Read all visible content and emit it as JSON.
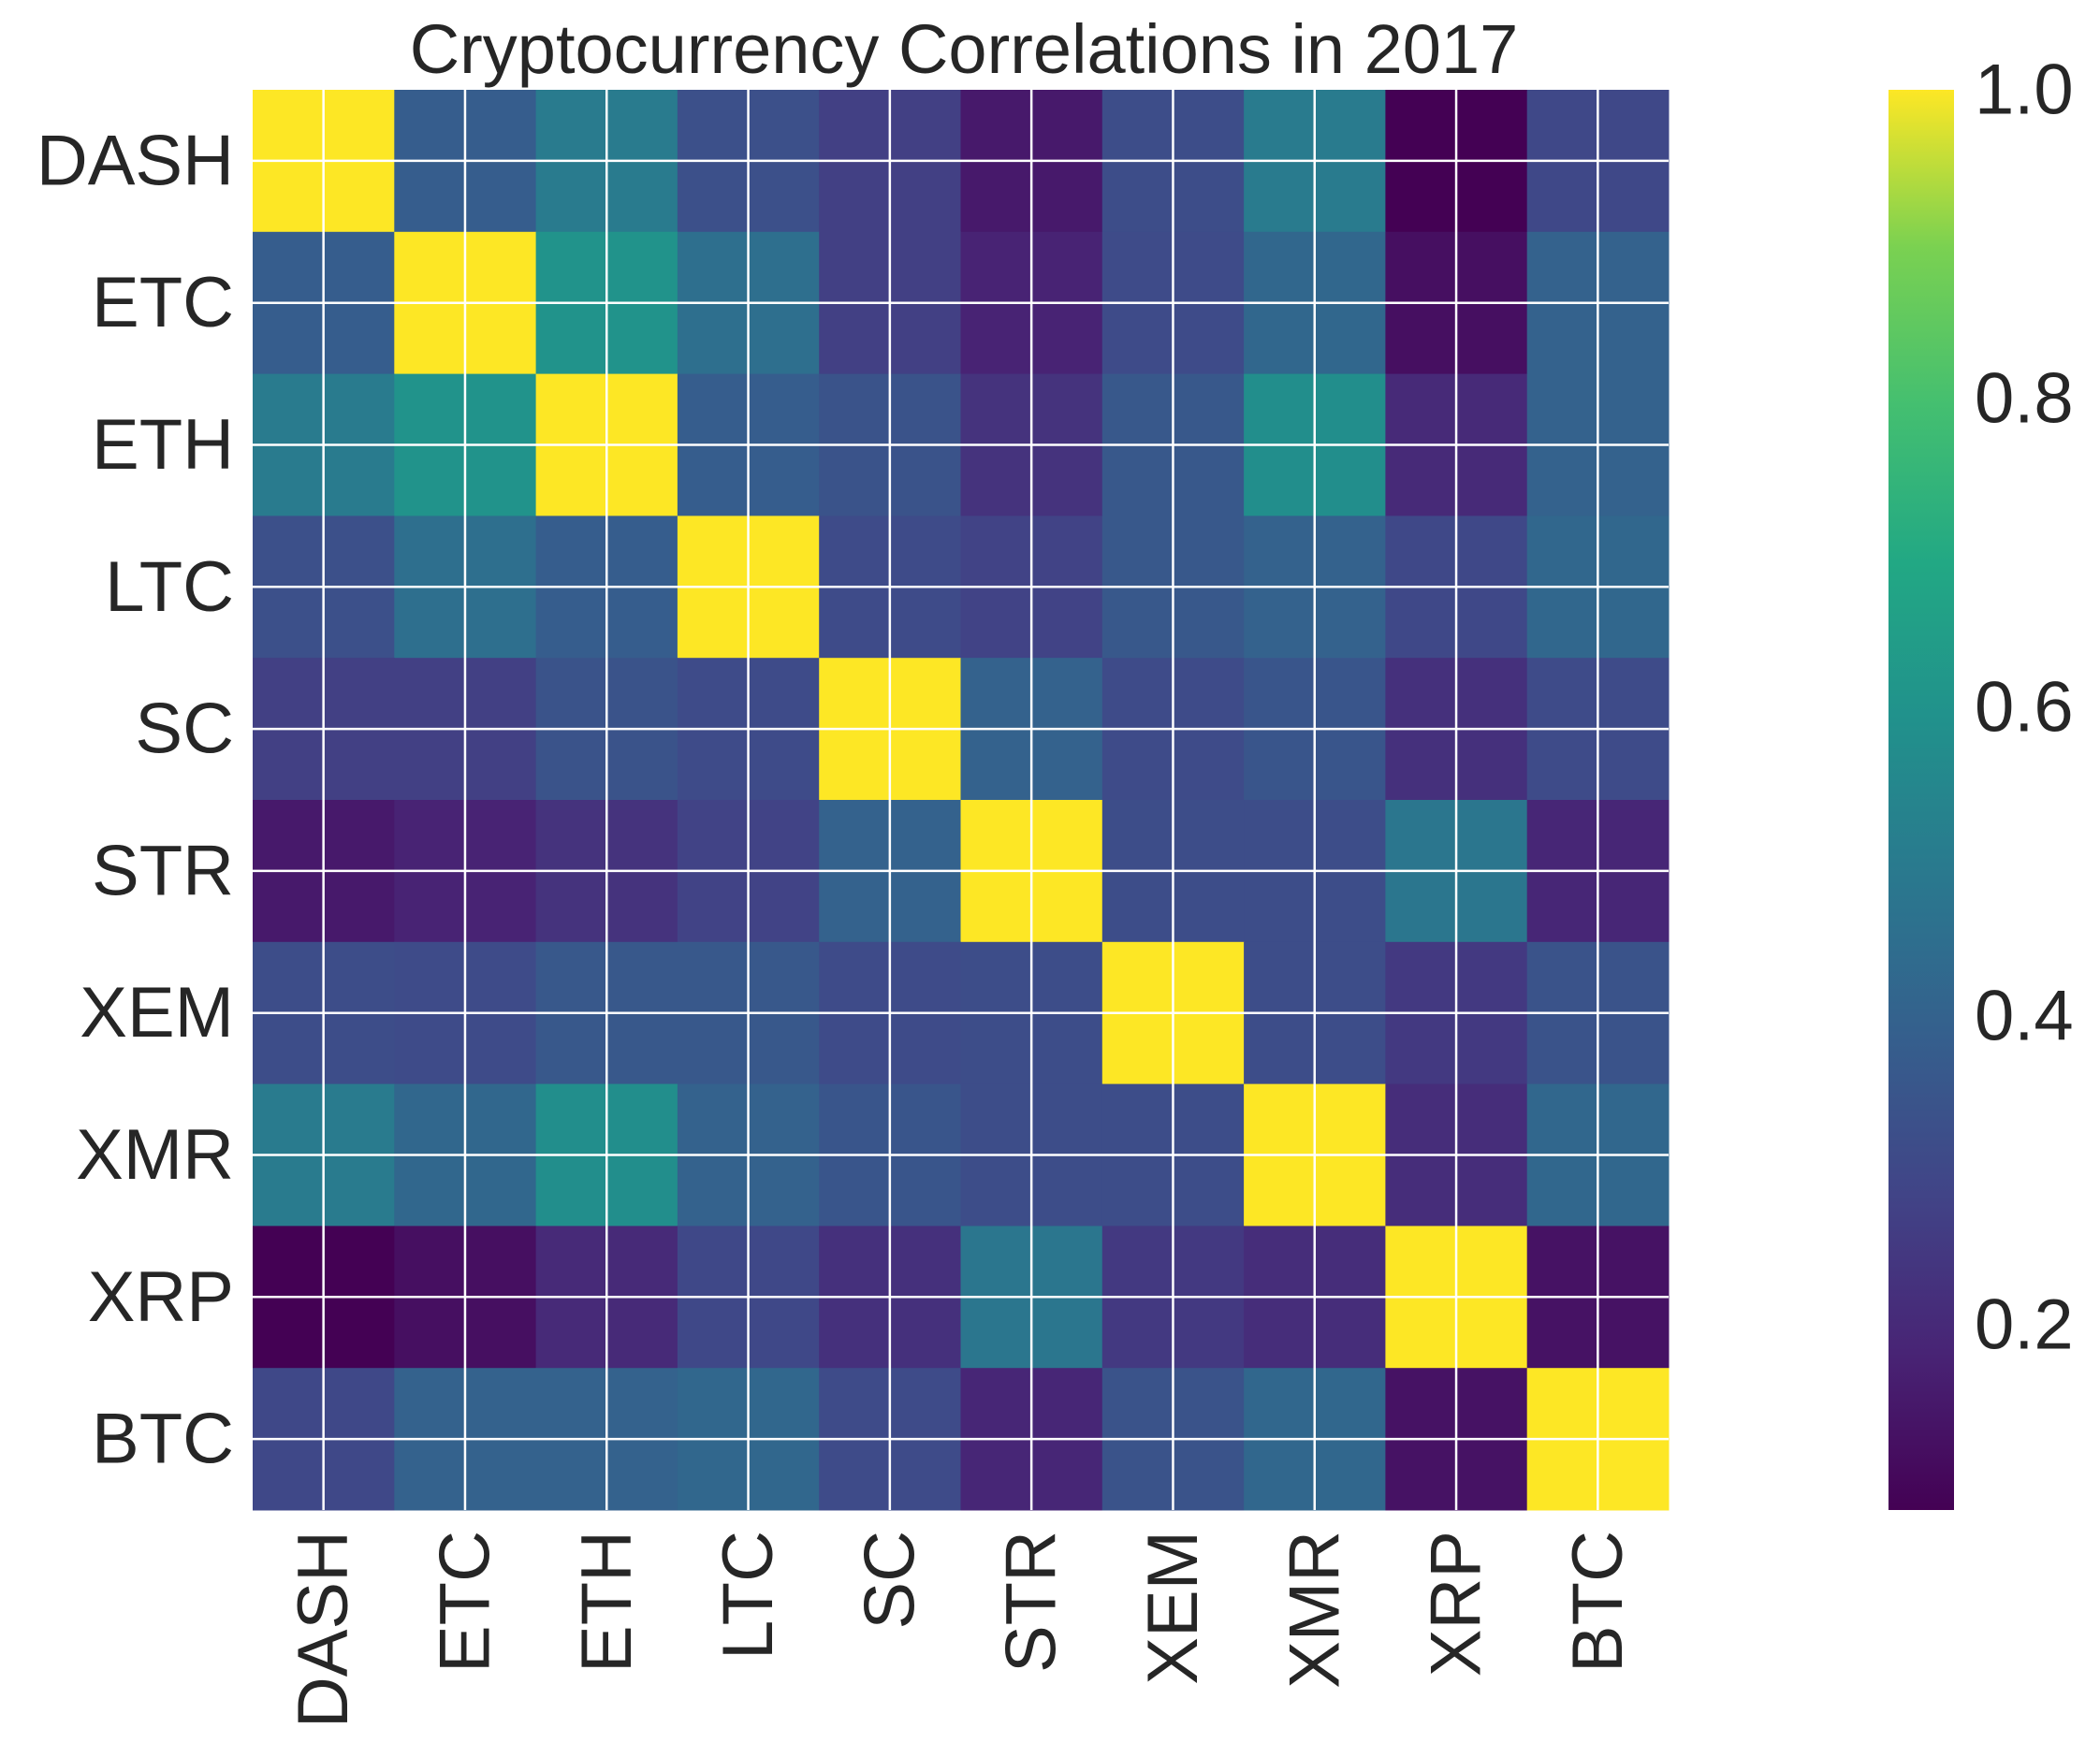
{
  "chart_data": {
    "type": "heatmap",
    "title": "Cryptocurrency Correlations in 2017",
    "xlabel": "",
    "ylabel": "",
    "rows": [
      "DASH",
      "ETC",
      "ETH",
      "LTC",
      "SC",
      "STR",
      "XEM",
      "XMR",
      "XRP",
      "BTC"
    ],
    "columns": [
      "DASH",
      "ETC",
      "ETH",
      "LTC",
      "SC",
      "STR",
      "XEM",
      "XMR",
      "XRP",
      "BTC"
    ],
    "values": [
      [
        1.0,
        0.38,
        0.5,
        0.33,
        0.27,
        0.15,
        0.32,
        0.5,
        0.08,
        0.3
      ],
      [
        0.38,
        1.0,
        0.6,
        0.45,
        0.27,
        0.18,
        0.31,
        0.42,
        0.12,
        0.4
      ],
      [
        0.5,
        0.6,
        1.0,
        0.38,
        0.34,
        0.23,
        0.36,
        0.58,
        0.2,
        0.4
      ],
      [
        0.33,
        0.45,
        0.38,
        1.0,
        0.31,
        0.28,
        0.36,
        0.4,
        0.3,
        0.42
      ],
      [
        0.27,
        0.27,
        0.34,
        0.31,
        1.0,
        0.4,
        0.31,
        0.35,
        0.22,
        0.31
      ],
      [
        0.15,
        0.18,
        0.23,
        0.28,
        0.4,
        1.0,
        0.32,
        0.32,
        0.48,
        0.19
      ],
      [
        0.32,
        0.31,
        0.36,
        0.36,
        0.31,
        0.32,
        1.0,
        0.32,
        0.25,
        0.34
      ],
      [
        0.5,
        0.42,
        0.58,
        0.4,
        0.35,
        0.32,
        0.32,
        1.0,
        0.21,
        0.42
      ],
      [
        0.08,
        0.12,
        0.2,
        0.3,
        0.22,
        0.48,
        0.25,
        0.21,
        1.0,
        0.13
      ],
      [
        0.3,
        0.4,
        0.4,
        0.42,
        0.31,
        0.19,
        0.34,
        0.42,
        0.13,
        1.0
      ]
    ],
    "colormap": "viridis",
    "colorbar": {
      "vmin": 0.08,
      "vmax": 1.0,
      "ticks": [
        0.2,
        0.4,
        0.6,
        0.8,
        1.0
      ],
      "tick_labels": [
        "0.2",
        "0.4",
        "0.6",
        "0.8",
        "1.0"
      ]
    },
    "grid": true,
    "grid_color": "#ffffff"
  }
}
